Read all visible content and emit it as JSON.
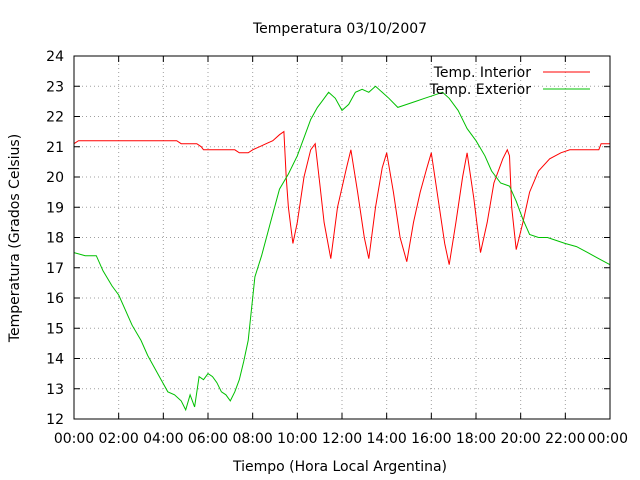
{
  "chart_data": {
    "type": "line",
    "title": "Temperatura 03/10/2007",
    "xlabel": "Tiempo (Hora Local Argentina)",
    "ylabel": "Temperatura (Grados Celsius)",
    "xlim": [
      0,
      24
    ],
    "ylim": [
      12,
      24
    ],
    "grid": true,
    "legend_position": "top-right",
    "x_ticks": [
      {
        "value": 0,
        "label": "00:00"
      },
      {
        "value": 2,
        "label": "02:00"
      },
      {
        "value": 4,
        "label": "04:00"
      },
      {
        "value": 6,
        "label": "06:00"
      },
      {
        "value": 8,
        "label": "08:00"
      },
      {
        "value": 10,
        "label": "10:00"
      },
      {
        "value": 12,
        "label": "12:00"
      },
      {
        "value": 14,
        "label": "14:00"
      },
      {
        "value": 16,
        "label": "16:00"
      },
      {
        "value": 18,
        "label": "18:00"
      },
      {
        "value": 20,
        "label": "20:00"
      },
      {
        "value": 22,
        "label": "22:00"
      },
      {
        "value": 24,
        "label": "00:00"
      }
    ],
    "y_ticks": [
      {
        "value": 12,
        "label": "12"
      },
      {
        "value": 13,
        "label": "13"
      },
      {
        "value": 14,
        "label": "14"
      },
      {
        "value": 15,
        "label": "15"
      },
      {
        "value": 16,
        "label": "16"
      },
      {
        "value": 17,
        "label": "17"
      },
      {
        "value": 18,
        "label": "18"
      },
      {
        "value": 19,
        "label": "19"
      },
      {
        "value": 20,
        "label": "20"
      },
      {
        "value": 21,
        "label": "21"
      },
      {
        "value": 22,
        "label": "22"
      },
      {
        "value": 23,
        "label": "23"
      },
      {
        "value": 24,
        "label": "24"
      }
    ],
    "series": [
      {
        "name": "Temp. Interior",
        "color": "#ff0000",
        "points": [
          [
            0,
            21.1
          ],
          [
            0.2,
            21.2
          ],
          [
            1,
            21.2
          ],
          [
            2,
            21.2
          ],
          [
            3,
            21.2
          ],
          [
            4,
            21.2
          ],
          [
            4.6,
            21.2
          ],
          [
            4.8,
            21.1
          ],
          [
            5.5,
            21.1
          ],
          [
            5.7,
            21.0
          ],
          [
            5.8,
            20.9
          ],
          [
            6.5,
            20.9
          ],
          [
            7.2,
            20.9
          ],
          [
            7.4,
            20.8
          ],
          [
            7.8,
            20.8
          ],
          [
            8.0,
            20.9
          ],
          [
            8.3,
            21.0
          ],
          [
            8.6,
            21.1
          ],
          [
            8.9,
            21.2
          ],
          [
            9.2,
            21.4
          ],
          [
            9.4,
            21.5
          ],
          [
            9.5,
            20.0
          ],
          [
            9.6,
            19.0
          ],
          [
            9.8,
            17.8
          ],
          [
            10.0,
            18.5
          ],
          [
            10.3,
            20.0
          ],
          [
            10.6,
            20.9
          ],
          [
            10.8,
            21.1
          ],
          [
            11.0,
            19.8
          ],
          [
            11.2,
            18.5
          ],
          [
            11.5,
            17.3
          ],
          [
            11.8,
            19.0
          ],
          [
            12.2,
            20.3
          ],
          [
            12.4,
            20.9
          ],
          [
            12.7,
            19.5
          ],
          [
            13.0,
            18.0
          ],
          [
            13.2,
            17.3
          ],
          [
            13.5,
            19.0
          ],
          [
            13.8,
            20.3
          ],
          [
            14.0,
            20.8
          ],
          [
            14.3,
            19.5
          ],
          [
            14.6,
            18.0
          ],
          [
            14.9,
            17.2
          ],
          [
            15.2,
            18.5
          ],
          [
            15.5,
            19.5
          ],
          [
            15.8,
            20.3
          ],
          [
            16.0,
            20.8
          ],
          [
            16.3,
            19.3
          ],
          [
            16.6,
            17.8
          ],
          [
            16.8,
            17.1
          ],
          [
            17.1,
            18.5
          ],
          [
            17.4,
            20.0
          ],
          [
            17.6,
            20.8
          ],
          [
            17.9,
            19.3
          ],
          [
            18.2,
            17.5
          ],
          [
            18.5,
            18.5
          ],
          [
            18.8,
            19.8
          ],
          [
            19.2,
            20.6
          ],
          [
            19.4,
            20.9
          ],
          [
            19.5,
            20.7
          ],
          [
            19.6,
            19.0
          ],
          [
            19.8,
            17.6
          ],
          [
            20.1,
            18.5
          ],
          [
            20.4,
            19.5
          ],
          [
            20.8,
            20.2
          ],
          [
            21.3,
            20.6
          ],
          [
            21.8,
            20.8
          ],
          [
            22.2,
            20.9
          ],
          [
            23.0,
            20.9
          ],
          [
            23.5,
            20.9
          ],
          [
            23.6,
            21.1
          ],
          [
            24,
            21.1
          ]
        ]
      },
      {
        "name": "Temp. Exterior",
        "color": "#00c000",
        "points": [
          [
            0,
            17.5
          ],
          [
            0.5,
            17.4
          ],
          [
            1.0,
            17.4
          ],
          [
            1.3,
            16.9
          ],
          [
            1.7,
            16.4
          ],
          [
            2.0,
            16.1
          ],
          [
            2.3,
            15.6
          ],
          [
            2.6,
            15.1
          ],
          [
            3.0,
            14.6
          ],
          [
            3.3,
            14.1
          ],
          [
            3.6,
            13.7
          ],
          [
            3.9,
            13.3
          ],
          [
            4.2,
            12.9
          ],
          [
            4.5,
            12.8
          ],
          [
            4.8,
            12.6
          ],
          [
            5.0,
            12.3
          ],
          [
            5.2,
            12.8
          ],
          [
            5.4,
            12.4
          ],
          [
            5.6,
            13.4
          ],
          [
            5.8,
            13.3
          ],
          [
            6.0,
            13.5
          ],
          [
            6.2,
            13.4
          ],
          [
            6.4,
            13.2
          ],
          [
            6.6,
            12.9
          ],
          [
            6.8,
            12.8
          ],
          [
            7.0,
            12.6
          ],
          [
            7.2,
            12.9
          ],
          [
            7.4,
            13.3
          ],
          [
            7.6,
            13.9
          ],
          [
            7.8,
            14.6
          ],
          [
            8.1,
            16.7
          ],
          [
            8.4,
            17.4
          ],
          [
            8.8,
            18.5
          ],
          [
            9.2,
            19.6
          ],
          [
            9.6,
            20.1
          ],
          [
            10.0,
            20.7
          ],
          [
            10.3,
            21.3
          ],
          [
            10.6,
            21.9
          ],
          [
            10.9,
            22.3
          ],
          [
            11.1,
            22.5
          ],
          [
            11.4,
            22.8
          ],
          [
            11.7,
            22.6
          ],
          [
            12.0,
            22.2
          ],
          [
            12.3,
            22.4
          ],
          [
            12.6,
            22.8
          ],
          [
            12.9,
            22.9
          ],
          [
            13.2,
            22.8
          ],
          [
            13.5,
            23.0
          ],
          [
            13.8,
            22.8
          ],
          [
            14.1,
            22.6
          ],
          [
            14.5,
            22.3
          ],
          [
            14.9,
            22.4
          ],
          [
            15.3,
            22.5
          ],
          [
            15.7,
            22.6
          ],
          [
            16.1,
            22.7
          ],
          [
            16.5,
            22.8
          ],
          [
            16.8,
            22.6
          ],
          [
            17.2,
            22.2
          ],
          [
            17.6,
            21.6
          ],
          [
            18.0,
            21.2
          ],
          [
            18.4,
            20.7
          ],
          [
            18.7,
            20.2
          ],
          [
            19.1,
            19.8
          ],
          [
            19.5,
            19.7
          ],
          [
            19.8,
            19.2
          ],
          [
            20.1,
            18.6
          ],
          [
            20.4,
            18.1
          ],
          [
            20.8,
            18.0
          ],
          [
            21.2,
            18.0
          ],
          [
            21.6,
            17.9
          ],
          [
            22.0,
            17.8
          ],
          [
            22.5,
            17.7
          ],
          [
            23.0,
            17.5
          ],
          [
            23.5,
            17.3
          ],
          [
            24,
            17.1
          ]
        ]
      }
    ]
  }
}
